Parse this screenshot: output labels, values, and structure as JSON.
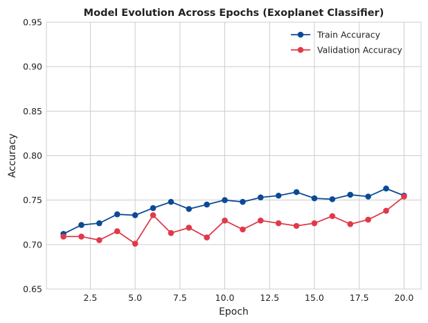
{
  "chart_data": {
    "type": "line",
    "title": "Model Evolution Across Epochs (Exoplanet Classifier)",
    "xlabel": "Epoch",
    "ylabel": "Accuracy",
    "xlim": [
      0.05,
      20.95
    ],
    "ylim": [
      0.65,
      0.95
    ],
    "xticks": [
      2.5,
      5.0,
      7.5,
      10.0,
      12.5,
      15.0,
      17.5,
      20.0
    ],
    "xtick_labels": [
      "2.5",
      "5.0",
      "7.5",
      "10.0",
      "12.5",
      "15.0",
      "17.5",
      "20.0"
    ],
    "yticks": [
      0.65,
      0.7,
      0.75,
      0.8,
      0.85,
      0.9,
      0.95
    ],
    "ytick_labels": [
      "0.65",
      "0.70",
      "0.75",
      "0.80",
      "0.85",
      "0.90",
      "0.95"
    ],
    "grid": true,
    "legend_position": "top-right",
    "x": [
      1,
      2,
      3,
      4,
      5,
      6,
      7,
      8,
      9,
      10,
      11,
      12,
      13,
      14,
      15,
      16,
      17,
      18,
      19,
      20
    ],
    "series": [
      {
        "name": "Train Accuracy",
        "color": "#0b4a96",
        "values": [
          0.712,
          0.722,
          0.724,
          0.734,
          0.733,
          0.741,
          0.748,
          0.74,
          0.745,
          0.75,
          0.748,
          0.753,
          0.755,
          0.759,
          0.752,
          0.751,
          0.756,
          0.754,
          0.763,
          0.755
        ]
      },
      {
        "name": "Validation Accuracy",
        "color": "#e03a4a",
        "values": [
          0.709,
          0.709,
          0.705,
          0.715,
          0.701,
          0.733,
          0.713,
          0.719,
          0.708,
          0.727,
          0.717,
          0.727,
          0.724,
          0.721,
          0.724,
          0.732,
          0.723,
          0.728,
          0.738,
          0.754
        ]
      }
    ]
  }
}
